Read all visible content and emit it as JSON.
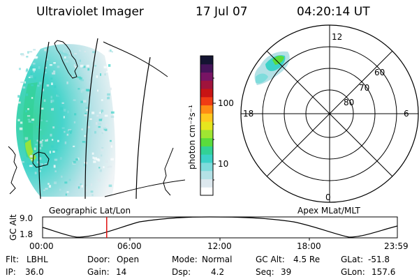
{
  "header": {
    "instrument": "Ultraviolet Imager",
    "date": "17 Jul 07",
    "time": "04:20:14 UT"
  },
  "colorbar": {
    "label": "photon cm⁻²s⁻¹",
    "ticks": [
      "100",
      "10"
    ],
    "colors": [
      "#ffffff",
      "#dde8ee",
      "#b4e1e6",
      "#7fdcdc",
      "#3cd2c8",
      "#32d296",
      "#5adc3c",
      "#a0e632",
      "#e6e61e",
      "#ffc81e",
      "#ff8c14",
      "#f03c14",
      "#c81414",
      "#a0143c",
      "#781464",
      "#46145a",
      "#141432"
    ]
  },
  "geo_map": {
    "label": "Geographic Lat/Lon"
  },
  "polar_plot": {
    "label": "Apex MLat/MLT",
    "mlt_labels": {
      "top": "12",
      "left": "18",
      "right": "6",
      "bottom": "0"
    },
    "mlat_labels": [
      "60",
      "70",
      "80"
    ]
  },
  "altitude_plot": {
    "ylabel": "GC Alt",
    "y_ticks": [
      "9.0",
      "1.8"
    ],
    "x_ticks": [
      "00:00",
      "06:00",
      "12:00",
      "18:00",
      "23:59"
    ],
    "marker_time": "04:20",
    "marker_color": "#e01010"
  },
  "status": {
    "flt_label": "Flt:",
    "flt_value": "LBHL",
    "ip_label": "IP:",
    "ip_value": "36.0",
    "door_label": "Door:",
    "door_value": "Open",
    "gain_label": "Gain:",
    "gain_value": "14",
    "mode_label": "Mode:",
    "mode_value": "Normal",
    "dsp_label": "Dsp:",
    "dsp_value": "4.2",
    "gcalt_label": "GC Alt:",
    "gcalt_value": "4.5 Re",
    "seq_label": "Seq:",
    "seq_value": "39",
    "glat_label": "GLat:",
    "glat_value": "-51.8",
    "glon_label": "GLon:",
    "glon_value": "157.6"
  }
}
